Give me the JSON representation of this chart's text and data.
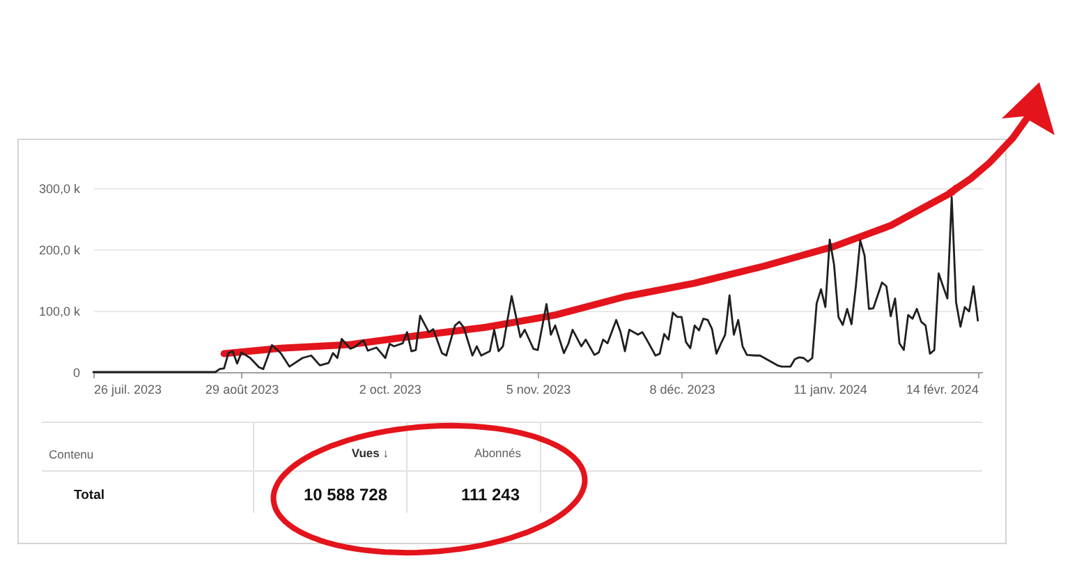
{
  "chart_data": {
    "type": "line",
    "x": [
      "2023-07-26",
      "2023-08-23",
      "2023-08-24",
      "2023-08-25",
      "2023-08-26",
      "2023-08-27",
      "2023-08-28",
      "2023-08-29",
      "2023-08-31",
      "2023-09-02",
      "2023-09-03",
      "2023-09-05",
      "2023-09-07",
      "2023-09-09",
      "2023-09-12",
      "2023-09-14",
      "2023-09-16",
      "2023-09-18",
      "2023-09-19",
      "2023-09-20",
      "2023-09-21",
      "2023-09-23",
      "2023-09-24",
      "2023-09-26",
      "2023-09-27",
      "2023-09-29",
      "2023-10-01",
      "2023-10-02",
      "2023-10-03",
      "2023-10-05",
      "2023-10-06",
      "2023-10-07",
      "2023-10-08",
      "2023-10-09",
      "2023-10-11",
      "2023-10-12",
      "2023-10-14",
      "2023-10-15",
      "2023-10-17",
      "2023-10-18",
      "2023-10-19",
      "2023-10-21",
      "2023-10-22",
      "2023-10-23",
      "2023-10-25",
      "2023-10-26",
      "2023-10-27",
      "2023-10-28",
      "2023-10-30",
      "2023-11-01",
      "2023-11-02",
      "2023-11-04",
      "2023-11-05",
      "2023-11-07",
      "2023-11-08",
      "2023-11-09",
      "2023-11-10",
      "2023-11-11",
      "2023-11-12",
      "2023-11-13",
      "2023-11-15",
      "2023-11-16",
      "2023-11-18",
      "2023-11-19",
      "2023-11-20",
      "2023-11-21",
      "2023-11-23",
      "2023-11-24",
      "2023-11-25",
      "2023-11-26",
      "2023-11-28",
      "2023-11-29",
      "2023-11-30",
      "2023-12-02",
      "2023-12-03",
      "2023-12-04",
      "2023-12-05",
      "2023-12-06",
      "2023-12-07",
      "2023-12-08",
      "2023-12-09",
      "2023-12-10",
      "2023-12-11",
      "2023-12-12",
      "2023-12-13",
      "2023-12-14",
      "2023-12-15",
      "2023-12-16",
      "2023-12-17",
      "2023-12-18",
      "2023-12-19",
      "2023-12-20",
      "2023-12-21",
      "2023-12-22",
      "2023-12-23",
      "2023-12-25",
      "2023-12-26",
      "2023-12-28",
      "2023-12-30",
      "2023-12-31",
      "2024-01-02",
      "2024-01-03",
      "2024-01-04",
      "2024-01-05",
      "2024-01-06",
      "2024-01-07",
      "2024-01-08",
      "2024-01-09",
      "2024-01-10",
      "2024-01-11",
      "2024-01-12",
      "2024-01-13",
      "2024-01-14",
      "2024-01-15",
      "2024-01-16",
      "2024-01-17",
      "2024-01-18",
      "2024-01-19",
      "2024-01-20",
      "2024-01-21",
      "2024-01-23",
      "2024-01-24",
      "2024-01-25",
      "2024-01-26",
      "2024-01-27",
      "2024-01-28",
      "2024-01-29",
      "2024-01-30",
      "2024-01-31",
      "2024-02-01",
      "2024-02-02",
      "2024-02-03",
      "2024-02-04",
      "2024-02-05",
      "2024-02-06",
      "2024-02-07",
      "2024-02-08",
      "2024-02-09",
      "2024-02-10",
      "2024-02-11",
      "2024-02-12",
      "2024-02-13",
      "2024-02-14"
    ],
    "series": [
      {
        "color": "#e3141b",
        "x": [
          "2023-08-25",
          "2023-09-07",
          "2023-09-23",
          "2023-10-08",
          "2023-10-24",
          "2023-11-09",
          "2023-11-25",
          "2023-12-11",
          "2023-12-27",
          "2024-01-12",
          "2024-01-25",
          "2024-02-08",
          "2024-02-09"
        ],
        "values": [
          30,
          39,
          45,
          59,
          73,
          93,
          123,
          145,
          173,
          205,
          239,
          293,
          300
        ]
      },
      {
        "color": "#1f1f1f",
        "values": [
          0,
          0,
          5,
          6,
          31,
          34,
          14,
          32,
          23,
          8,
          5,
          44,
          31,
          9,
          23,
          27,
          11,
          15,
          31,
          23,
          54,
          38,
          41,
          52,
          35,
          40,
          23,
          46,
          42,
          47,
          65,
          34,
          36,
          92,
          65,
          70,
          31,
          27,
          76,
          82,
          73,
          27,
          42,
          27,
          34,
          69,
          34,
          42,
          124,
          57,
          69,
          38,
          36,
          111,
          61,
          76,
          53,
          31,
          46,
          69,
          42,
          53,
          28,
          32,
          53,
          47,
          85,
          65,
          34,
          69,
          61,
          65,
          53,
          27,
          30,
          62,
          53,
          97,
          90,
          90,
          49,
          39,
          76,
          68,
          87,
          85,
          70,
          30,
          46,
          61,
          125,
          61,
          85,
          42,
          28,
          27,
          27,
          19,
          11,
          9,
          9,
          21,
          24,
          23,
          17,
          23,
          112,
          135,
          106,
          216,
          175,
          90,
          77,
          103,
          78,
          140,
          215,
          190,
          103,
          104,
          146,
          140,
          91,
          120,
          47,
          36,
          93,
          87,
          103,
          82,
          76,
          30,
          36,
          161,
          140,
          120,
          285,
          114,
          74,
          106,
          99,
          140,
          84
        ]
      }
    ],
    "xlim": [
      "2023-07-26",
      "2024-02-15"
    ],
    "xticks": [
      {
        "value": "2023-07-26",
        "label": "26 juil. 2023"
      },
      {
        "value": "2023-08-29",
        "label": "29 août 2023"
      },
      {
        "value": "2023-10-02",
        "label": "2 oct. 2023"
      },
      {
        "value": "2023-11-05",
        "label": "5 nov. 2023"
      },
      {
        "value": "2023-12-08",
        "label": "8 déc. 2023"
      },
      {
        "value": "2024-01-11",
        "label": "11 janv. 2024"
      },
      {
        "value": "2024-02-14",
        "label": "14 févr. 2024"
      }
    ],
    "ylim": [
      0,
      300
    ],
    "yticks": [
      0,
      {
        "value": 100,
        "label": "100,0 k"
      },
      {
        "value": 200,
        "label": "200,0 k"
      },
      {
        "value": 300,
        "label": "300,0 k"
      }
    ],
    "grid": "y",
    "annotations": [
      "Contenu",
      "Vues ↓",
      "Abonnés",
      "Total",
      "10 588 728",
      "111 243"
    ]
  }
}
